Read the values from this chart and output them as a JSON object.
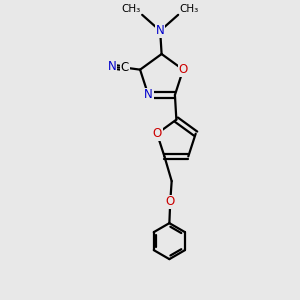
{
  "bg_color": "#e8e8e8",
  "bond_color": "#000000",
  "bond_width": 1.6,
  "atom_colors": {
    "N": "#0000cc",
    "O": "#cc0000",
    "C": "#000000"
  },
  "font_size_atom": 8.5,
  "font_size_me": 7.5,
  "figsize": [
    3.0,
    3.0
  ],
  "dpi": 100,
  "xlim": [
    0,
    10
  ],
  "ylim": [
    0,
    10
  ]
}
